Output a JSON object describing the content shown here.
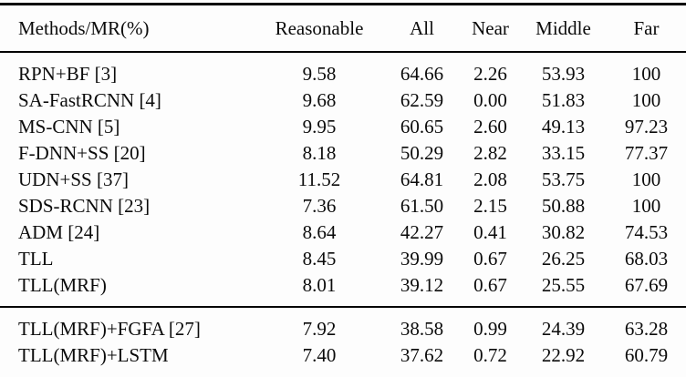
{
  "chart_data": {
    "type": "table",
    "title": "Pedestrian detection miss-rate comparison table",
    "columns": [
      "Methods/MR(%)",
      "Reasonable",
      "All",
      "Near",
      "Middle",
      "Far"
    ],
    "sections": [
      {
        "rows": [
          [
            "RPN+BF [3]",
            "9.58",
            "64.66",
            "2.26",
            "53.93",
            "100"
          ],
          [
            "SA-FastRCNN [4]",
            "9.68",
            "62.59",
            "0.00",
            "51.83",
            "100"
          ],
          [
            "MS-CNN [5]",
            "9.95",
            "60.65",
            "2.60",
            "49.13",
            "97.23"
          ],
          [
            "F-DNN+SS [20]",
            "8.18",
            "50.29",
            "2.82",
            "33.15",
            "77.37"
          ],
          [
            "UDN+SS [37]",
            "11.52",
            "64.81",
            "2.08",
            "53.75",
            "100"
          ],
          [
            "SDS-RCNN [23]",
            "7.36",
            "61.50",
            "2.15",
            "50.88",
            "100"
          ],
          [
            "ADM [24]",
            "8.64",
            "42.27",
            "0.41",
            "30.82",
            "74.53"
          ],
          [
            "TLL",
            "8.45",
            "39.99",
            "0.67",
            "26.25",
            "68.03"
          ],
          [
            "TLL(MRF)",
            "8.01",
            "39.12",
            "0.67",
            "25.55",
            "67.69"
          ]
        ]
      },
      {
        "rows": [
          [
            "TLL(MRF)+FGFA [27]",
            "7.92",
            "38.58",
            "0.99",
            "24.39",
            "63.28"
          ],
          [
            "TLL(MRF)+LSTM",
            "7.40",
            "37.62",
            "0.72",
            "22.92",
            "60.79"
          ]
        ]
      }
    ],
    "layout": {
      "first_column_align": "left",
      "value_columns_align": "center",
      "rule_style": "horizontal rules only (top, below header, before last section, bottom)",
      "background": "#fdfdfd",
      "text_color": "#0b0b0b",
      "rule_color": "#000000"
    }
  }
}
